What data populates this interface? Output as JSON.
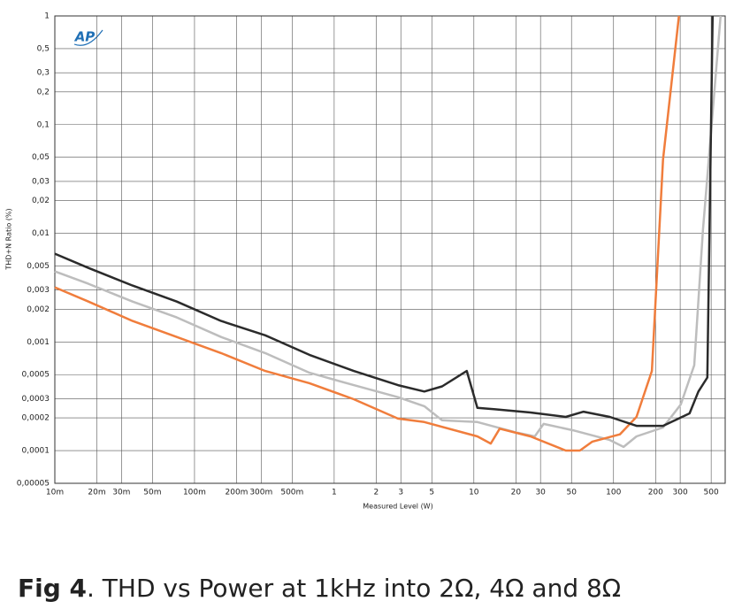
{
  "chart_data": {
    "type": "line",
    "title_label": "Fig 4",
    "title": ". THD vs Power at 1kHz into 2Ω, 4Ω and 8Ω",
    "logo": "AP",
    "x_label": "Measured Level (W)",
    "y_label": "THD+N Ratio (%)",
    "xscale": "log",
    "yscale": "log",
    "grid": true,
    "xlim": [
      0.01,
      630
    ],
    "ylim": [
      5e-05,
      1
    ],
    "xticks": [
      {
        "value": 0.01,
        "label": "10m"
      },
      {
        "value": 0.02,
        "label": "20m"
      },
      {
        "value": 0.03,
        "label": "30m"
      },
      {
        "value": 0.05,
        "label": "50m"
      },
      {
        "value": 0.1,
        "label": "100m"
      },
      {
        "value": 0.2,
        "label": "200m"
      },
      {
        "value": 0.3,
        "label": "300m"
      },
      {
        "value": 0.5,
        "label": "500m"
      },
      1,
      2,
      3,
      5,
      10,
      20,
      30,
      50,
      100,
      200,
      300,
      500
    ],
    "yticks": [
      1,
      {
        "value": 0.5,
        "label": "0,5"
      },
      {
        "value": 0.3,
        "label": "0,3"
      },
      {
        "value": 0.2,
        "label": "0,2"
      },
      {
        "value": 0.1,
        "label": "0,1"
      },
      {
        "value": 0.05,
        "label": "0,05"
      },
      {
        "value": 0.03,
        "label": "0,03"
      },
      {
        "value": 0.02,
        "label": "0,02"
      },
      {
        "value": 0.01,
        "label": "0,01"
      },
      {
        "value": 0.005,
        "label": "0,005"
      },
      {
        "value": 0.003,
        "label": "0,003"
      },
      {
        "value": 0.002,
        "label": "0,002"
      },
      {
        "value": 0.001,
        "label": "0,001"
      },
      {
        "value": 0.0005,
        "label": "0,0005"
      },
      {
        "value": 0.0003,
        "label": "0,0003"
      },
      {
        "value": 0.0002,
        "label": "0,0002"
      },
      {
        "value": 0.0001,
        "label": "0,0001"
      },
      {
        "value": 5e-05,
        "label": "0,00005"
      }
    ],
    "series": [
      {
        "color": "#bdbdbd",
        "x": [
          0.01,
          0.0174,
          0.036,
          0.0747,
          0.155,
          0.321,
          0.665,
          1.38,
          2.86,
          4.42,
          5.92,
          10.6,
          20.5,
          27.3,
          31.6,
          52.3,
          94,
          118,
          146,
          226,
          303,
          378,
          436,
          584
        ],
        "values": [
          0.00446,
          0.00343,
          0.00235,
          0.00168,
          0.00111,
          0.00079,
          0.00052,
          0.0004,
          0.00031,
          0.000256,
          0.00019,
          0.000183,
          0.000146,
          0.000135,
          0.000176,
          0.000153,
          0.000125,
          0.000108,
          0.000135,
          0.000163,
          0.000266,
          0.00061,
          0.0106,
          1
        ]
      },
      {
        "color": "#f07d3c",
        "x": [
          0.01,
          0.0174,
          0.036,
          0.0747,
          0.155,
          0.321,
          0.665,
          1.38,
          2.86,
          4.42,
          10.6,
          13.2,
          15.3,
          25.4,
          45.5,
          57.4,
          70.5,
          111,
          146,
          188,
          226,
          294
        ],
        "values": [
          0.00318,
          0.00235,
          0.00156,
          0.00111,
          0.00079,
          0.00054,
          0.000417,
          0.000297,
          0.000197,
          0.000183,
          0.000135,
          0.000116,
          0.000159,
          0.000135,
          0.0001,
          0.0001,
          0.000121,
          0.000141,
          0.000204,
          0.00054,
          0.0476,
          1
        ]
      },
      {
        "color": "#2b2b2b",
        "x": [
          0.01,
          0.0174,
          0.036,
          0.0747,
          0.155,
          0.321,
          0.665,
          1.38,
          2.86,
          4.42,
          5.92,
          8.9,
          10.6,
          14.2,
          25.4,
          45.5,
          61,
          94,
          146,
          226,
          350,
          405,
          469,
          512
        ],
        "values": [
          0.00649,
          0.0048,
          0.0033,
          0.00235,
          0.00156,
          0.00115,
          0.00076,
          0.00054,
          0.0004,
          0.00035,
          0.00039,
          0.00054,
          0.000247,
          0.00024,
          0.000224,
          0.000204,
          0.000228,
          0.000204,
          0.000169,
          0.000169,
          0.00022,
          0.00035,
          0.00047,
          1
        ]
      }
    ]
  }
}
